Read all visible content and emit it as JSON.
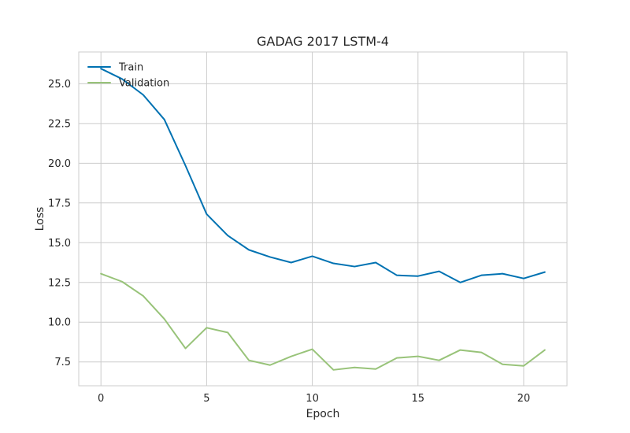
{
  "chart_data": {
    "type": "line",
    "title": "GADAG 2017 LSTM-4",
    "xlabel": "Epoch",
    "ylabel": "Loss",
    "xlim": [
      -1.05,
      22.05
    ],
    "ylim": [
      6.0,
      27.0
    ],
    "xticks": [
      0,
      5,
      10,
      15,
      20
    ],
    "xtick_labels": [
      "0",
      "5",
      "10",
      "15",
      "20"
    ],
    "yticks": [
      7.5,
      10.0,
      12.5,
      15.0,
      17.5,
      20.0,
      22.5,
      25.0
    ],
    "ytick_labels": [
      "7.5",
      "10.0",
      "12.5",
      "15.0",
      "17.5",
      "20.0",
      "22.5",
      "25.0"
    ],
    "grid": true,
    "legend_position": "top-left",
    "x": [
      0,
      1,
      2,
      3,
      4,
      5,
      6,
      7,
      8,
      9,
      10,
      11,
      12,
      13,
      14,
      15,
      16,
      17,
      18,
      19,
      20,
      21
    ],
    "series": [
      {
        "name": "Train",
        "color": "#0072b2",
        "values": [
          25.95,
          25.3,
          24.3,
          22.75,
          19.85,
          16.8,
          15.45,
          14.55,
          14.1,
          13.75,
          14.15,
          13.7,
          13.5,
          13.75,
          12.95,
          12.9,
          13.2,
          12.5,
          12.95,
          13.05,
          12.75,
          13.15
        ]
      },
      {
        "name": "Validation",
        "color": "#98c379",
        "values": [
          13.05,
          12.55,
          11.65,
          10.2,
          8.35,
          9.65,
          9.35,
          7.6,
          7.3,
          7.85,
          8.3,
          7.0,
          7.15,
          7.05,
          7.75,
          7.85,
          7.6,
          8.25,
          8.1,
          7.35,
          7.25,
          8.25
        ]
      }
    ]
  }
}
